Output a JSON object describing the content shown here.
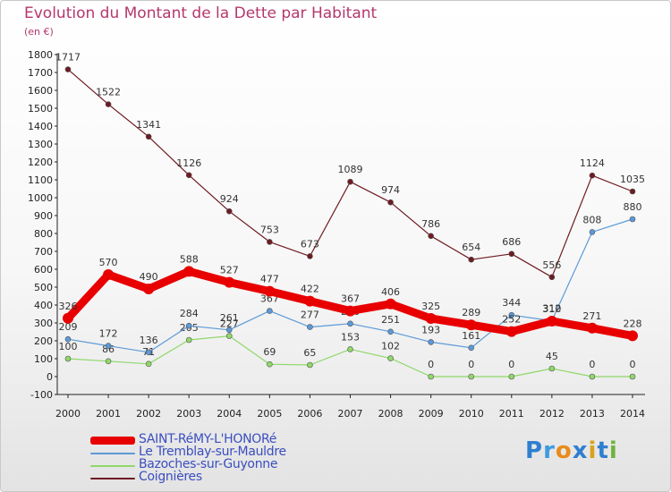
{
  "title": "Evolution du Montant de la Dette par Habitant",
  "unit": "(en €)",
  "logo": {
    "text": "Proxiti",
    "colors": [
      "#2f7fd0",
      "#3f9ae0",
      "#e98b1a",
      "#2f7fd0",
      "#d9a21b",
      "#2f7fd0",
      "#6db33f"
    ]
  },
  "chart_data": {
    "type": "line",
    "x": [
      "2000",
      "2001",
      "2002",
      "2003",
      "2004",
      "2005",
      "2006",
      "2007",
      "2008",
      "2009",
      "2010",
      "2011",
      "2012",
      "2013",
      "2014"
    ],
    "ylim": [
      -100,
      1800
    ],
    "yticks": [
      -100,
      0,
      100,
      200,
      300,
      400,
      500,
      600,
      700,
      800,
      900,
      1000,
      1100,
      1200,
      1300,
      1400,
      1500,
      1600,
      1700,
      1800
    ],
    "grid": false,
    "legend": "bottom-left",
    "series": [
      {
        "name": "Coignières",
        "color": "#6e1b22",
        "width": 1.2,
        "marker": 3,
        "values": [
          1717,
          1522,
          1341,
          1126,
          924,
          753,
          673,
          1089,
          974,
          786,
          654,
          686,
          556,
          1124,
          1035
        ],
        "labels": [
          "1717",
          "1522",
          "1341",
          "1126",
          "924",
          "753",
          "673",
          "1089",
          "974",
          "786",
          "654",
          "686",
          "556",
          "1124",
          "1035"
        ]
      },
      {
        "name": "Bazoches-sur-Guyonne",
        "color": "#8fd86a",
        "width": 1.2,
        "marker": 3,
        "values": [
          100,
          86,
          71,
          205,
          227,
          69,
          65,
          153,
          102,
          0,
          0,
          0,
          45,
          0,
          0
        ],
        "labels": [
          "100",
          "86",
          "71",
          "205",
          "227",
          "69",
          "65",
          "153",
          "102",
          "0",
          "0",
          "0",
          "45",
          "0",
          "0"
        ]
      },
      {
        "name": "Le Tremblay-sur-Mauldre",
        "color": "#5b9ad8",
        "width": 1.2,
        "marker": 3,
        "values": [
          209,
          172,
          136,
          284,
          261,
          367,
          277,
          296,
          251,
          193,
          161,
          344,
          312,
          808,
          880
        ],
        "labels": [
          "209",
          "172",
          "136",
          "284",
          "261",
          "367",
          "277",
          "296",
          "251",
          "193",
          "161",
          "344",
          "312",
          "808",
          "880"
        ]
      },
      {
        "name": "SAINT-RéMY-L'HONORé",
        "color": "#e80000",
        "width": 9,
        "marker": 6,
        "values": [
          326,
          570,
          490,
          588,
          527,
          477,
          422,
          367,
          406,
          325,
          289,
          252,
          310,
          271,
          228
        ],
        "labels": [
          "326",
          "570",
          "490",
          "588",
          "527",
          "477",
          "422",
          "367",
          "406",
          "325",
          "289",
          "252",
          "310",
          "271",
          "228"
        ]
      }
    ]
  },
  "legend_items": [
    {
      "name": "SAINT-RéMY-L'HONORé",
      "color": "#e80000",
      "thick": true
    },
    {
      "name": "Le Tremblay-sur-Mauldre",
      "color": "#5b9ad8",
      "thick": false
    },
    {
      "name": "Bazoches-sur-Guyonne",
      "color": "#8fd86a",
      "thick": false
    },
    {
      "name": "Coignières",
      "color": "#6e1b22",
      "thick": false
    }
  ]
}
